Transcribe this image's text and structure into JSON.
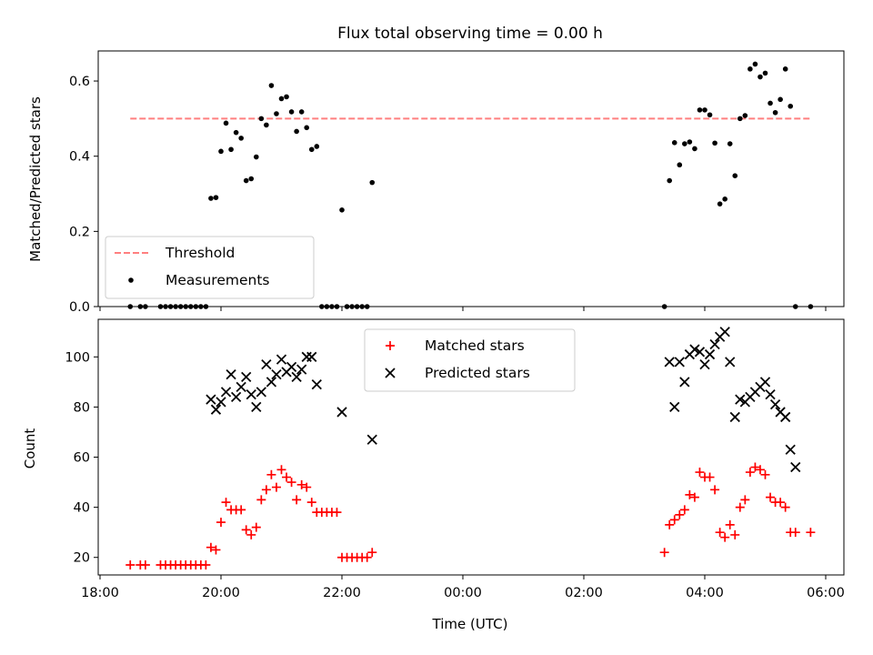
{
  "chart_data": [
    {
      "type": "scatter",
      "title": "Flux total observing time = 0.00 h",
      "xlabel": "",
      "ylabel": "Matched/Predicted stars",
      "xticks": [
        "18:00",
        "20:00",
        "22:00",
        "00:00",
        "02:00",
        "04:00",
        "06:00"
      ],
      "yticks": [
        "0.0",
        "0.2",
        "0.4",
        "0.6"
      ],
      "ylim": [
        0,
        0.68
      ],
      "legend_position": "lower-left",
      "threshold": {
        "name": "Threshold",
        "color": "#ff7f7f",
        "y": 0.5,
        "x_start": "18:30",
        "x_end": "05:45"
      },
      "series": [
        {
          "name": "Measurements",
          "color": "#000000",
          "marker": "dot",
          "points": [
            [
              "18:30",
              0
            ],
            [
              "18:40",
              0
            ],
            [
              "18:45",
              0
            ],
            [
              "19:00",
              0
            ],
            [
              "19:05",
              0
            ],
            [
              "19:10",
              0
            ],
            [
              "19:15",
              0
            ],
            [
              "19:20",
              0
            ],
            [
              "19:25",
              0
            ],
            [
              "19:30",
              0
            ],
            [
              "19:35",
              0
            ],
            [
              "19:40",
              0
            ],
            [
              "19:45",
              0
            ],
            [
              "19:50",
              0.288
            ],
            [
              "19:55",
              0.29
            ],
            [
              "20:00",
              0.413
            ],
            [
              "20:05",
              0.488
            ],
            [
              "20:10",
              0.418
            ],
            [
              "20:15",
              0.463
            ],
            [
              "20:20",
              0.448
            ],
            [
              "20:25",
              0.335
            ],
            [
              "20:30",
              0.34
            ],
            [
              "20:35",
              0.398
            ],
            [
              "20:40",
              0.5
            ],
            [
              "20:45",
              0.483
            ],
            [
              "20:50",
              0.588
            ],
            [
              "20:55",
              0.513
            ],
            [
              "21:00",
              0.553
            ],
            [
              "21:05",
              0.558
            ],
            [
              "21:10",
              0.518
            ],
            [
              "21:15",
              0.466
            ],
            [
              "21:20",
              0.518
            ],
            [
              "21:25",
              0.476
            ],
            [
              "21:30",
              0.418
            ],
            [
              "21:35",
              0.426
            ],
            [
              "21:40",
              0
            ],
            [
              "21:45",
              0
            ],
            [
              "21:50",
              0
            ],
            [
              "21:55",
              0
            ],
            [
              "22:00",
              0.257
            ],
            [
              "22:05",
              0
            ],
            [
              "22:10",
              0
            ],
            [
              "22:15",
              0
            ],
            [
              "22:20",
              0
            ],
            [
              "22:25",
              0
            ],
            [
              "22:30",
              0.33
            ],
            [
              "03:20",
              0
            ],
            [
              "03:25",
              0.335
            ],
            [
              "03:30",
              0.436
            ],
            [
              "03:35",
              0.377
            ],
            [
              "03:40",
              0.433
            ],
            [
              "03:45",
              0.438
            ],
            [
              "03:50",
              0.42
            ],
            [
              "03:55",
              0.523
            ],
            [
              "04:00",
              0.523
            ],
            [
              "04:05",
              0.51
            ],
            [
              "04:10",
              0.435
            ],
            [
              "04:15",
              0.273
            ],
            [
              "04:20",
              0.286
            ],
            [
              "04:25",
              0.433
            ],
            [
              "04:30",
              0.348
            ],
            [
              "04:35",
              0.5
            ],
            [
              "04:40",
              0.508
            ],
            [
              "04:45",
              0.632
            ],
            [
              "04:50",
              0.645
            ],
            [
              "04:55",
              0.611
            ],
            [
              "05:00",
              0.621
            ],
            [
              "05:05",
              0.541
            ],
            [
              "05:10",
              0.516
            ],
            [
              "05:15",
              0.551
            ],
            [
              "05:20",
              0.632
            ],
            [
              "05:25",
              0.533
            ],
            [
              "05:30",
              0
            ],
            [
              "05:45",
              0
            ]
          ]
        }
      ]
    },
    {
      "type": "scatter",
      "title": "",
      "xlabel": "Time (UTC)",
      "ylabel": "Count",
      "xticks": [
        "18:00",
        "20:00",
        "22:00",
        "00:00",
        "02:00",
        "04:00",
        "06:00"
      ],
      "yticks": [
        "20",
        "40",
        "60",
        "80",
        "100"
      ],
      "ylim": [
        13,
        115
      ],
      "legend_position": "upper-center",
      "series": [
        {
          "name": "Matched stars",
          "color": "#ff0000",
          "marker": "plus",
          "points": [
            [
              "18:30",
              17
            ],
            [
              "18:40",
              17
            ],
            [
              "18:45",
              17
            ],
            [
              "19:00",
              17
            ],
            [
              "19:05",
              17
            ],
            [
              "19:10",
              17
            ],
            [
              "19:15",
              17
            ],
            [
              "19:20",
              17
            ],
            [
              "19:25",
              17
            ],
            [
              "19:30",
              17
            ],
            [
              "19:35",
              17
            ],
            [
              "19:40",
              17
            ],
            [
              "19:45",
              17
            ],
            [
              "19:50",
              24
            ],
            [
              "19:55",
              23
            ],
            [
              "20:00",
              34
            ],
            [
              "20:05",
              42
            ],
            [
              "20:10",
              39
            ],
            [
              "20:15",
              39
            ],
            [
              "20:20",
              39
            ],
            [
              "20:25",
              31
            ],
            [
              "20:30",
              29
            ],
            [
              "20:35",
              32
            ],
            [
              "20:40",
              43
            ],
            [
              "20:45",
              47
            ],
            [
              "20:50",
              53
            ],
            [
              "20:55",
              48
            ],
            [
              "21:00",
              55
            ],
            [
              "21:05",
              52
            ],
            [
              "21:10",
              50
            ],
            [
              "21:15",
              43
            ],
            [
              "21:20",
              49
            ],
            [
              "21:25",
              48
            ],
            [
              "21:30",
              42
            ],
            [
              "21:35",
              38
            ],
            [
              "21:40",
              38
            ],
            [
              "21:45",
              38
            ],
            [
              "21:50",
              38
            ],
            [
              "21:55",
              38
            ],
            [
              "22:00",
              20
            ],
            [
              "22:05",
              20
            ],
            [
              "22:10",
              20
            ],
            [
              "22:15",
              20
            ],
            [
              "22:20",
              20
            ],
            [
              "22:25",
              20
            ],
            [
              "22:30",
              22
            ],
            [
              "03:20",
              22
            ],
            [
              "03:25",
              33
            ],
            [
              "03:30",
              35
            ],
            [
              "03:35",
              37
            ],
            [
              "03:40",
              39
            ],
            [
              "03:45",
              45
            ],
            [
              "03:50",
              44
            ],
            [
              "03:55",
              54
            ],
            [
              "04:00",
              52
            ],
            [
              "04:05",
              52
            ],
            [
              "04:10",
              47
            ],
            [
              "04:15",
              30
            ],
            [
              "04:20",
              28
            ],
            [
              "04:25",
              33
            ],
            [
              "04:30",
              29
            ],
            [
              "04:35",
              40
            ],
            [
              "04:40",
              43
            ],
            [
              "04:45",
              54
            ],
            [
              "04:50",
              56
            ],
            [
              "04:55",
              55
            ],
            [
              "05:00",
              53
            ],
            [
              "05:05",
              44
            ],
            [
              "05:10",
              42
            ],
            [
              "05:15",
              42
            ],
            [
              "05:20",
              40
            ],
            [
              "05:25",
              30
            ],
            [
              "05:30",
              30
            ],
            [
              "05:45",
              30
            ]
          ]
        },
        {
          "name": "Predicted stars",
          "color": "#000000",
          "marker": "x",
          "points": [
            [
              "19:50",
              83
            ],
            [
              "19:55",
              79
            ],
            [
              "20:00",
              82
            ],
            [
              "20:05",
              86
            ],
            [
              "20:10",
              93
            ],
            [
              "20:15",
              84
            ],
            [
              "20:20",
              88
            ],
            [
              "20:25",
              92
            ],
            [
              "20:30",
              85
            ],
            [
              "20:35",
              80
            ],
            [
              "20:40",
              86
            ],
            [
              "20:45",
              97
            ],
            [
              "20:50",
              90
            ],
            [
              "20:55",
              93
            ],
            [
              "21:00",
              99
            ],
            [
              "21:05",
              94
            ],
            [
              "21:10",
              96
            ],
            [
              "21:15",
              92
            ],
            [
              "21:20",
              95
            ],
            [
              "21:25",
              100
            ],
            [
              "21:30",
              100
            ],
            [
              "21:35",
              89
            ],
            [
              "22:00",
              78
            ],
            [
              "22:30",
              67
            ],
            [
              "03:25",
              98
            ],
            [
              "03:30",
              80
            ],
            [
              "03:35",
              98
            ],
            [
              "03:40",
              90
            ],
            [
              "03:45",
              101
            ],
            [
              "03:50",
              103
            ],
            [
              "03:55",
              102
            ],
            [
              "04:00",
              97
            ],
            [
              "04:05",
              101
            ],
            [
              "04:10",
              105
            ],
            [
              "04:15",
              108
            ],
            [
              "04:20",
              110
            ],
            [
              "04:25",
              98
            ],
            [
              "04:30",
              76
            ],
            [
              "04:35",
              83
            ],
            [
              "04:40",
              82
            ],
            [
              "04:45",
              84
            ],
            [
              "04:50",
              86
            ],
            [
              "04:55",
              88
            ],
            [
              "05:00",
              90
            ],
            [
              "05:05",
              85
            ],
            [
              "05:10",
              81
            ],
            [
              "05:15",
              78
            ],
            [
              "05:20",
              76
            ],
            [
              "05:25",
              63
            ],
            [
              "05:30",
              56
            ]
          ]
        }
      ]
    }
  ]
}
